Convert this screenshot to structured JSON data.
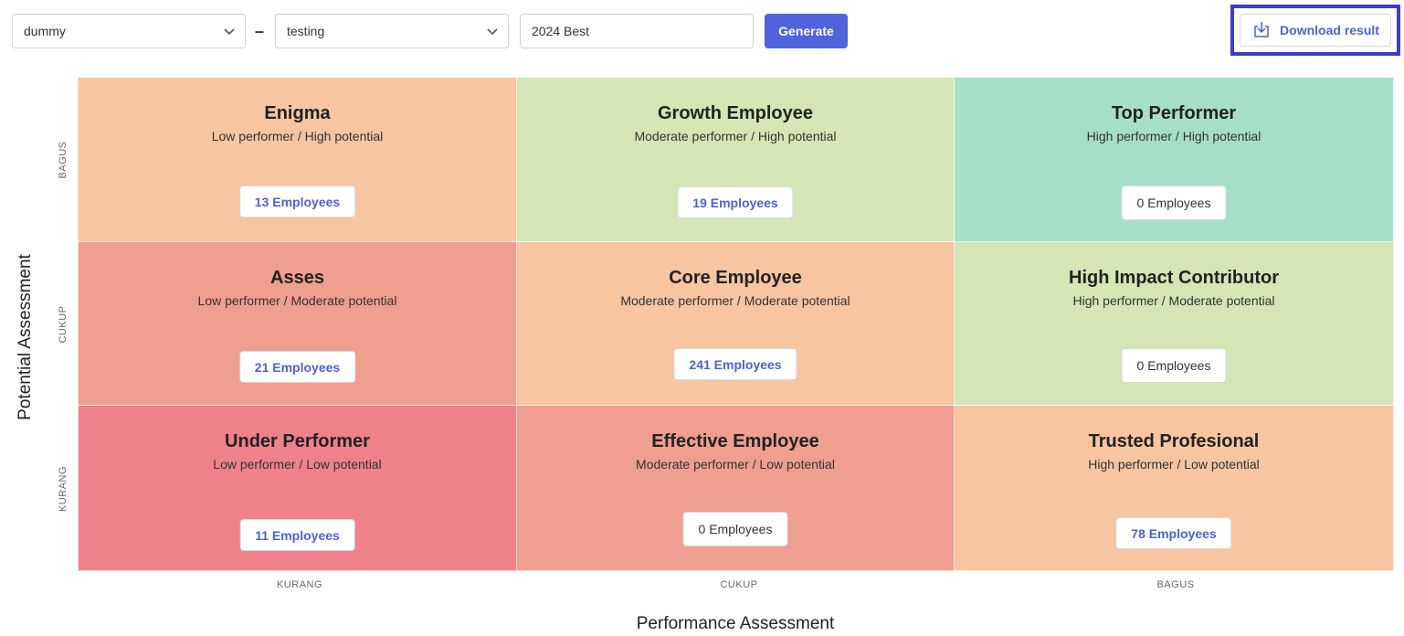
{
  "filters": {
    "select_1": {
      "value": "dummy"
    },
    "separator": "–",
    "select_2": {
      "value": "testing"
    },
    "name_input": {
      "value": "2024 Best"
    },
    "generate_label": "Generate",
    "download_label": "Download result"
  },
  "colors": {
    "accent": "#4f63dd",
    "download_highlight": "#3c3ccd",
    "peach": "#f7c5a0",
    "light_green": "#d5e5b5",
    "teal": "#a5dfc8",
    "salmon": "#ef9e90",
    "red": "#ef818a"
  },
  "y_axis": {
    "title": "Potential Assessment",
    "ticks": [
      "BAGUS",
      "CUKUP",
      "KURANG"
    ]
  },
  "x_axis": {
    "title": "Performance Assessment",
    "ticks": [
      "KURANG",
      "CUKUP",
      "BAGUS"
    ]
  },
  "cells": [
    {
      "title": "Enigma",
      "subtitle": "Low performer / High potential",
      "count": "13 Employees",
      "color": "#f7c5a0"
    },
    {
      "title": "Growth Employee",
      "subtitle": "Moderate performer / High potential",
      "count": "19 Employees",
      "color": "#d5e5b5"
    },
    {
      "title": "Top Performer",
      "subtitle": "High performer / High potential",
      "count": "0 Employees",
      "color": "#a5dfc8"
    },
    {
      "title": "Asses",
      "subtitle": "Low performer / Moderate potential",
      "count": "21 Employees",
      "color": "#ef9e90"
    },
    {
      "title": "Core Employee",
      "subtitle": "Moderate performer / Moderate potential",
      "count": "241 Employees",
      "color": "#f7c5a0"
    },
    {
      "title": "High Impact Contributor",
      "subtitle": "High performer / Moderate potential",
      "count": "0 Employees",
      "color": "#d5e5b5"
    },
    {
      "title": "Under Performer",
      "subtitle": "Low performer / Low potential",
      "count": "11 Employees",
      "color": "#ef818a"
    },
    {
      "title": "Effective Employee",
      "subtitle": "Moderate performer / Low potential",
      "count": "0 Employees",
      "color": "#ef9e90"
    },
    {
      "title": "Trusted Profesional",
      "subtitle": "High performer / Low potential",
      "count": "78 Employees",
      "color": "#f7c5a0"
    }
  ]
}
